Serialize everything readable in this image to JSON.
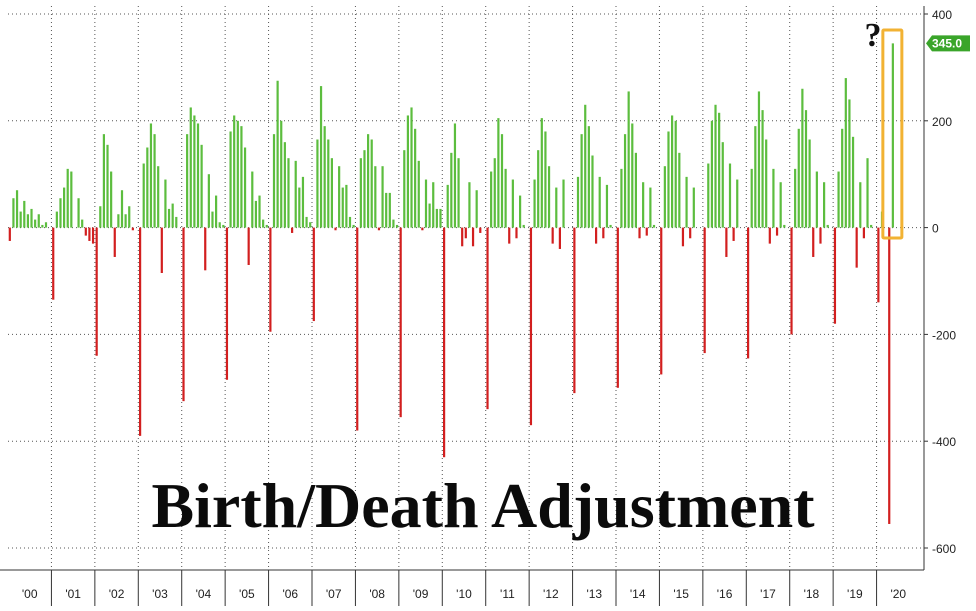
{
  "chart_data": {
    "type": "bar",
    "title": "Birth/Death Adjustment",
    "xlabel": "",
    "ylabel": "",
    "ylim": [
      -620,
      410
    ],
    "yticks": [
      400,
      200,
      0,
      -200,
      -400,
      -600
    ],
    "ytick_labels": [
      "400",
      "200",
      "0",
      "-200",
      "-400",
      "-600"
    ],
    "x_tick_labels": [
      "'00",
      "'01",
      "'02",
      "'03",
      "'04",
      "'05",
      "'06",
      "'07",
      "'08",
      "'09",
      "'10",
      "'11",
      "'12",
      "'13",
      "'14",
      "'15",
      "'16",
      "'17",
      "'18",
      "'19",
      "'20"
    ],
    "grid": true,
    "positive_color": "#5cbd3e",
    "negative_color": "#d21f1f",
    "highlight_color": "#f2b233",
    "last_value_label": "345.0",
    "last_value_badge_color": "#3aa52a",
    "annotation": "?",
    "monthly_values": {
      "'00": [
        -25,
        55,
        70,
        30,
        50,
        25,
        35,
        15,
        25,
        5,
        10,
        0
      ],
      "'01": [
        -135,
        30,
        55,
        75,
        110,
        105,
        0,
        55,
        15,
        -15,
        -25,
        -30
      ],
      "'02": [
        -240,
        40,
        175,
        155,
        105,
        -55,
        25,
        70,
        25,
        40,
        -5,
        0
      ],
      "'03": [
        -390,
        120,
        150,
        195,
        175,
        115,
        -85,
        90,
        35,
        45,
        20,
        0
      ],
      "'04": [
        -325,
        175,
        225,
        210,
        195,
        155,
        -80,
        100,
        30,
        60,
        10,
        5
      ],
      "'05": [
        -285,
        180,
        210,
        200,
        190,
        150,
        -70,
        105,
        50,
        60,
        15,
        5
      ],
      "'06": [
        -195,
        175,
        275,
        200,
        160,
        130,
        -10,
        125,
        75,
        95,
        20,
        10
      ],
      "'07": [
        -175,
        165,
        265,
        190,
        165,
        130,
        -5,
        115,
        75,
        80,
        20,
        5
      ],
      "'08": [
        -380,
        130,
        145,
        175,
        165,
        115,
        -5,
        115,
        65,
        65,
        15,
        5
      ],
      "'09": [
        -355,
        145,
        210,
        225,
        185,
        125,
        -5,
        90,
        45,
        85,
        35,
        35
      ],
      "'10": [
        -430,
        80,
        140,
        195,
        130,
        -35,
        -20,
        85,
        -35,
        70,
        -10,
        0
      ],
      "'11": [
        -340,
        105,
        130,
        205,
        175,
        110,
        -30,
        90,
        -20,
        60,
        5,
        0
      ],
      "'12": [
        -370,
        90,
        145,
        205,
        180,
        115,
        -30,
        75,
        -40,
        90,
        0,
        0
      ],
      "'13": [
        -310,
        95,
        175,
        230,
        190,
        135,
        -30,
        95,
        -20,
        80,
        5,
        0
      ],
      "'14": [
        -300,
        110,
        175,
        255,
        195,
        140,
        -20,
        85,
        -15,
        75,
        5,
        0
      ],
      "'15": [
        -275,
        115,
        180,
        210,
        200,
        140,
        -35,
        95,
        -20,
        75,
        0,
        0
      ],
      "'16": [
        -235,
        120,
        200,
        230,
        215,
        160,
        -55,
        120,
        -25,
        90,
        0,
        0
      ],
      "'17": [
        -245,
        110,
        190,
        255,
        220,
        165,
        -30,
        110,
        -15,
        85,
        5,
        0
      ],
      "'18": [
        -200,
        110,
        185,
        260,
        220,
        165,
        -55,
        105,
        -30,
        85,
        5,
        0
      ],
      "'19": [
        -180,
        105,
        185,
        280,
        240,
        170,
        -75,
        85,
        -20,
        130,
        5,
        0
      ],
      "'20": [
        -140,
        30,
        0,
        -555,
        345,
        0,
        0,
        0,
        0,
        0,
        0,
        0
      ]
    }
  }
}
